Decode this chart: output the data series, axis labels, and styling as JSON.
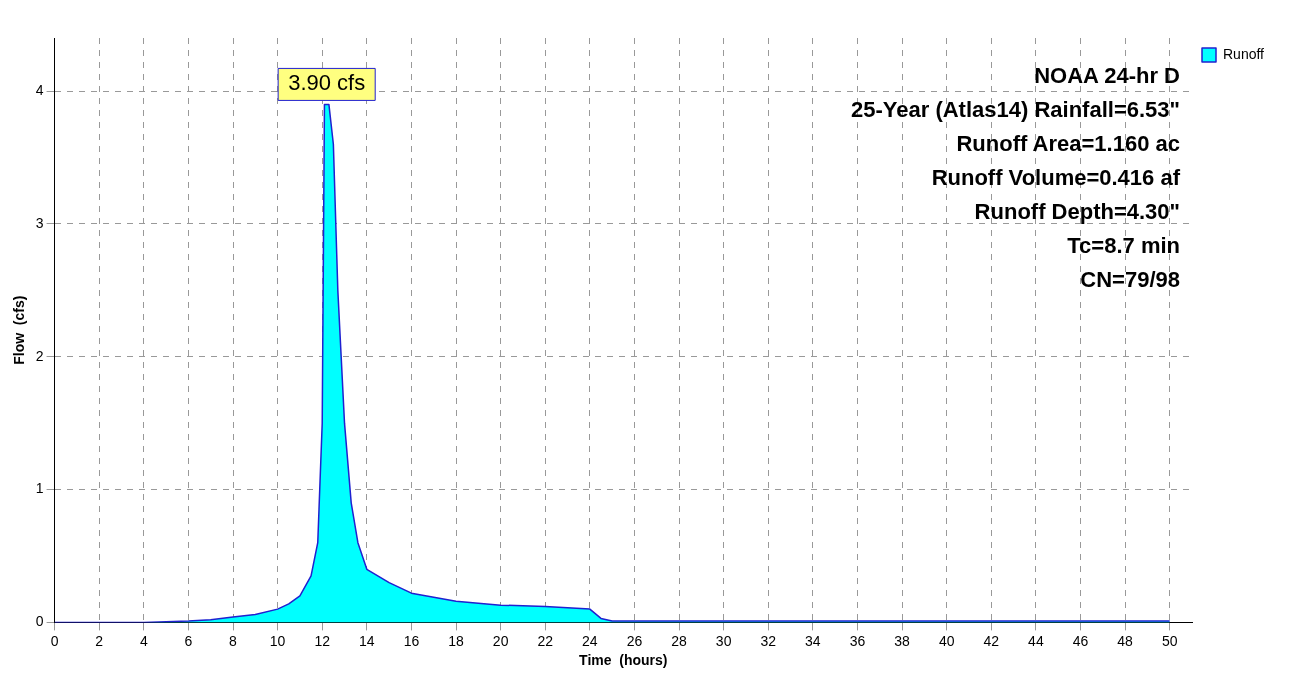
{
  "chart_data": {
    "type": "area",
    "xlabel": "Time  (hours)",
    "ylabel": "Flow  (cfs)",
    "x": [
      0,
      2,
      4,
      5,
      6,
      7,
      8,
      9,
      10,
      10.5,
      11,
      11.5,
      11.8,
      12,
      12.1,
      12.3,
      12.5,
      12.7,
      13,
      13.3,
      13.6,
      14,
      15,
      16,
      18,
      20,
      22,
      24,
      24.5,
      25,
      50
    ],
    "series": [
      {
        "name": "Runoff",
        "color": "#00ffff",
        "values": [
          0,
          0,
          0,
          0.005,
          0.01,
          0.02,
          0.04,
          0.06,
          0.1,
          0.14,
          0.2,
          0.35,
          0.6,
          1.5,
          3.9,
          3.9,
          3.6,
          2.5,
          1.5,
          0.9,
          0.6,
          0.4,
          0.3,
          0.22,
          0.16,
          0.13,
          0.12,
          0.1,
          0.03,
          0.01,
          0.01
        ]
      }
    ],
    "xlim": [
      0,
      51
    ],
    "ylim": [
      0,
      4.4
    ],
    "xticks": [
      0,
      2,
      4,
      6,
      8,
      10,
      12,
      14,
      16,
      18,
      20,
      22,
      24,
      26,
      28,
      30,
      32,
      34,
      36,
      38,
      40,
      42,
      44,
      46,
      48,
      50
    ],
    "yticks": [
      0,
      1,
      2,
      3,
      4
    ],
    "grid": true,
    "legend": "top right",
    "annotations": [
      {
        "text": "3.90 cfs",
        "x": 12.2,
        "y": 3.9
      },
      "NOAA 24-hr D",
      "25-Year (Atlas14) Rainfall=6.53\"",
      "Runoff Area=1.160 ac",
      "Runoff Volume=0.416 af",
      "Runoff Depth=4.30\"",
      "Tc=8.7 min",
      "CN=79/98"
    ]
  }
}
